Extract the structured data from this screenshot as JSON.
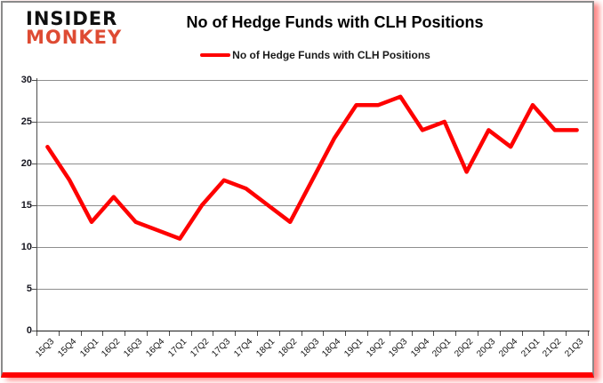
{
  "logo": {
    "line1": "INSIDER",
    "line2": "MONKEY"
  },
  "header": {
    "title": "No of Hedge Funds with CLH Positions"
  },
  "legend": {
    "label": "No of Hedge Funds with CLH Positions"
  },
  "chart_data": {
    "type": "line",
    "title": "No of Hedge Funds with CLH Positions",
    "categories": [
      "15Q3",
      "15Q4",
      "16Q1",
      "16Q2",
      "16Q3",
      "16Q4",
      "17Q1",
      "17Q2",
      "17Q3",
      "17Q4",
      "18Q1",
      "18Q2",
      "18Q3",
      "18Q4",
      "19Q1",
      "19Q2",
      "19Q3",
      "19Q4",
      "20Q1",
      "20Q2",
      "20Q3",
      "20Q4",
      "21Q1",
      "21Q2",
      "21Q3"
    ],
    "series": [
      {
        "name": "No of Hedge Funds with CLH Positions",
        "color": "#fe0000",
        "values": [
          22,
          18,
          13,
          16,
          13,
          12,
          11,
          15,
          18,
          17,
          15,
          13,
          18,
          23,
          27,
          27,
          28,
          24,
          25,
          19,
          24,
          22,
          27,
          24,
          24
        ]
      }
    ],
    "xlabel": "",
    "ylabel": "",
    "ylim": [
      0,
      30
    ],
    "ytick_interval": 5,
    "yticks": [
      0,
      5,
      10,
      15,
      20,
      25,
      30
    ],
    "grid": true,
    "legend_position": "top-center",
    "line_width": 4.5
  },
  "colors": {
    "line": "#fe0000",
    "logo_insider": "#101010",
    "logo_monkey": "#de4b33",
    "grid": "#8e8e8e",
    "axis": "#1a1a1a",
    "card_border": "#8a8a8a",
    "bottom_bar": "#fe0000",
    "background": "#ffffff"
  }
}
